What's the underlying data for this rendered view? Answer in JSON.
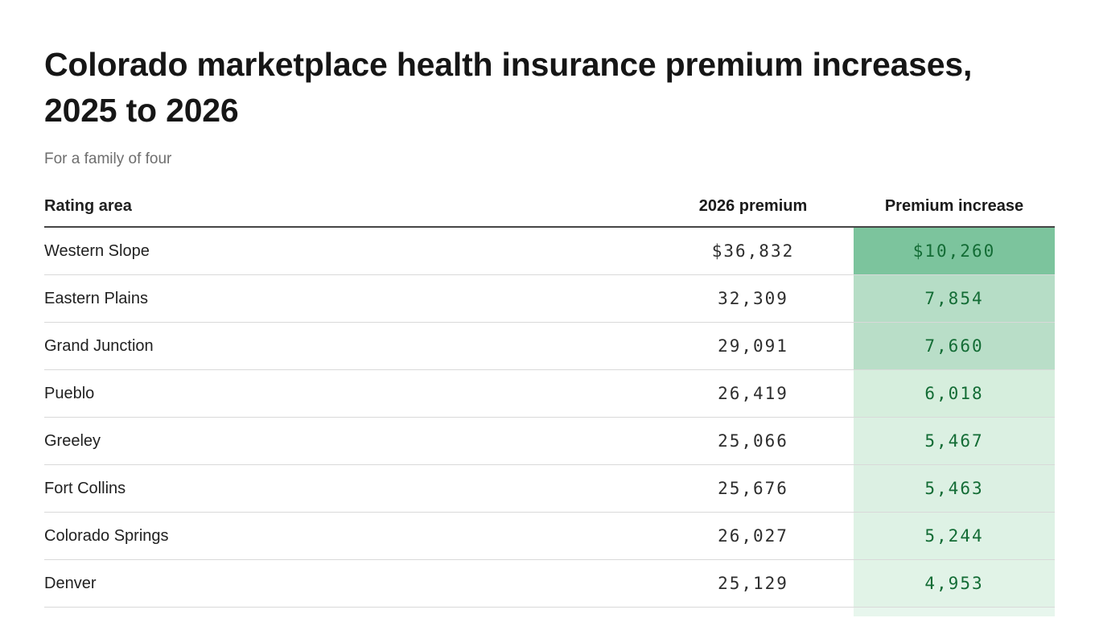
{
  "chart_data": {
    "type": "table",
    "title": "Colorado marketplace health insurance premium increases, 2025 to 2026",
    "subtitle": "For a family of four",
    "columns": [
      "Rating area",
      "2026 premium",
      "Premium increase"
    ],
    "rows": [
      {
        "area": "Western Slope",
        "premium_2026": 36832,
        "increase": 10260,
        "premium_display": "$36,832",
        "increase_display": "$10,260",
        "increase_cell_color": "#7cc49d"
      },
      {
        "area": "Eastern Plains",
        "premium_2026": 32309,
        "increase": 7854,
        "premium_display": "32,309",
        "increase_display": "7,854",
        "increase_cell_color": "#b6ddc6"
      },
      {
        "area": "Grand Junction",
        "premium_2026": 29091,
        "increase": 7660,
        "premium_display": "29,091",
        "increase_display": "7,660",
        "increase_cell_color": "#b9dec8"
      },
      {
        "area": "Pueblo",
        "premium_2026": 26419,
        "increase": 6018,
        "premium_display": "26,419",
        "increase_display": "6,018",
        "increase_cell_color": "#d6eedd"
      },
      {
        "area": "Greeley",
        "premium_2026": 25066,
        "increase": 5467,
        "premium_display": "25,066",
        "increase_display": "5,467",
        "increase_cell_color": "#dbf0e2"
      },
      {
        "area": "Fort Collins",
        "premium_2026": 25676,
        "increase": 5463,
        "premium_display": "25,676",
        "increase_display": "5,463",
        "increase_cell_color": "#dcf0e3"
      },
      {
        "area": "Colorado Springs",
        "premium_2026": 26027,
        "increase": 5244,
        "premium_display": "26,027",
        "increase_display": "5,244",
        "increase_cell_color": "#def2e5"
      },
      {
        "area": "Denver",
        "premium_2026": 25129,
        "increase": 4953,
        "premium_display": "25,129",
        "increase_display": "4,953",
        "increase_cell_color": "#e1f3e7"
      }
    ],
    "partial_row": {
      "increase_cell_color": "#e7f6ed"
    },
    "colors": {
      "increase_text": "#136c35",
      "title_text": "#161616",
      "subtitle_text": "#6e6e6e",
      "body_text": "#212121",
      "premium_text": "#2e2e2e",
      "header_divider": "#454545",
      "row_divider": "#d9d9d9",
      "background": "#ffffff"
    },
    "layout": {
      "legend": false,
      "grid": "horizontal-dividers",
      "numeric_columns_alignment": "center",
      "heat_column": "Premium increase"
    }
  }
}
